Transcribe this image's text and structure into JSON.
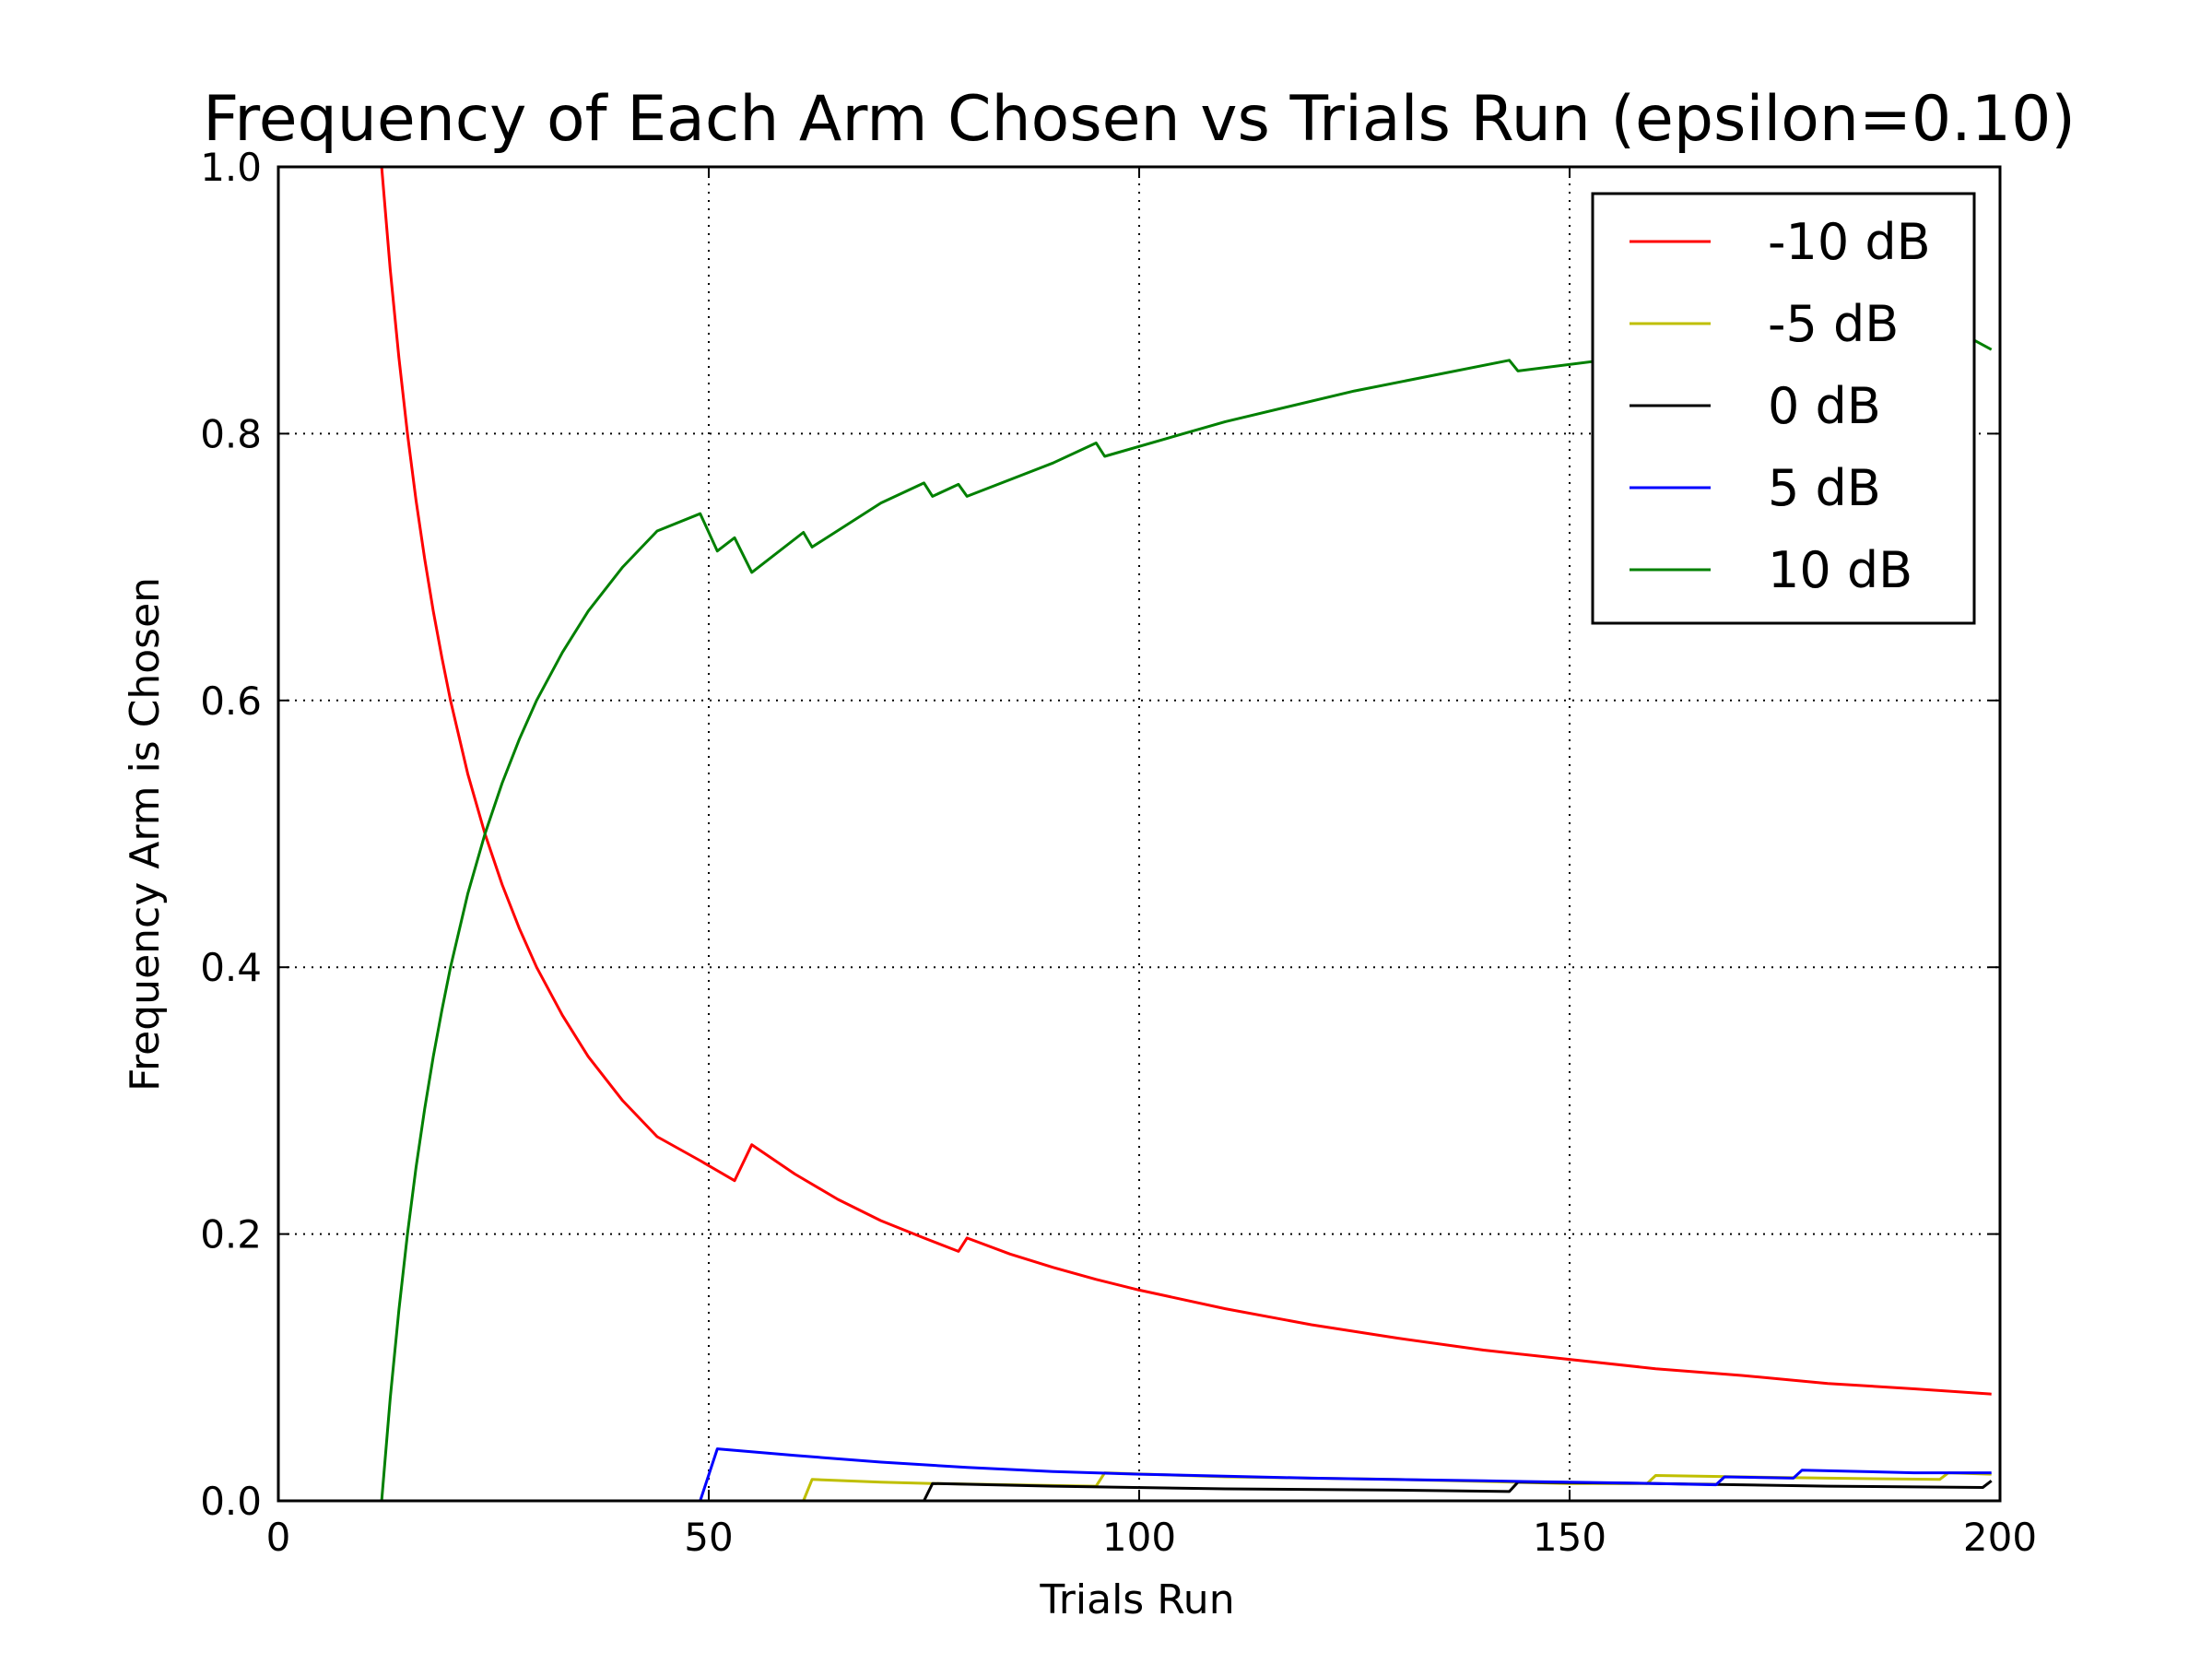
{
  "chart_data": {
    "type": "line",
    "title": "Frequency of Each Arm Chosen vs Trials Run (epsilon=0.10)",
    "xlabel": "Trials Run",
    "ylabel": "Frequency Arm is Chosen",
    "xlim": [
      0,
      200
    ],
    "ylim": [
      0.0,
      1.0
    ],
    "xticks": [
      0,
      50,
      100,
      150,
      200
    ],
    "xtick_labels": [
      "0",
      "50",
      "100",
      "150",
      "200"
    ],
    "yticks": [
      0.0,
      0.2,
      0.4,
      0.6,
      0.8,
      1.0
    ],
    "ytick_labels": [
      "0.0",
      "0.2",
      "0.4",
      "0.6",
      "0.8",
      "1.0"
    ],
    "grid": true,
    "legend_position": "top-right",
    "series": [
      {
        "name": "-10 dB",
        "color": "#ff0000",
        "points": [
          [
            12,
            1.0
          ],
          [
            13,
            0.923
          ],
          [
            14,
            0.857
          ],
          [
            15,
            0.8
          ],
          [
            16,
            0.75
          ],
          [
            17,
            0.706
          ],
          [
            18,
            0.667
          ],
          [
            19,
            0.632
          ],
          [
            20,
            0.6
          ],
          [
            22,
            0.545
          ],
          [
            24,
            0.5
          ],
          [
            26,
            0.462
          ],
          [
            28,
            0.429
          ],
          [
            30,
            0.4
          ],
          [
            33,
            0.364
          ],
          [
            36,
            0.333
          ],
          [
            40,
            0.3
          ],
          [
            44,
            0.273
          ],
          [
            49,
            0.255
          ],
          [
            53,
            0.24
          ],
          [
            55,
            0.267
          ],
          [
            60,
            0.245
          ],
          [
            65,
            0.226
          ],
          [
            70,
            0.21
          ],
          [
            75,
            0.197
          ],
          [
            79,
            0.187
          ],
          [
            80,
            0.197
          ],
          [
            85,
            0.185
          ],
          [
            90,
            0.175
          ],
          [
            95,
            0.166
          ],
          [
            100,
            0.158
          ],
          [
            110,
            0.144
          ],
          [
            120,
            0.132
          ],
          [
            130,
            0.122
          ],
          [
            140,
            0.113
          ],
          [
            150,
            0.106
          ],
          [
            160,
            0.099
          ],
          [
            170,
            0.094
          ],
          [
            180,
            0.088
          ],
          [
            190,
            0.084
          ],
          [
            199,
            0.08
          ]
        ]
      },
      {
        "name": "-5 dB",
        "color": "#bfbf00",
        "points": [
          [
            0,
            0.0
          ],
          [
            61,
            0.0
          ],
          [
            62,
            0.016
          ],
          [
            70,
            0.014
          ],
          [
            76,
            0.013
          ],
          [
            95,
            0.011
          ],
          [
            96,
            0.021
          ],
          [
            110,
            0.018
          ],
          [
            130,
            0.016
          ],
          [
            150,
            0.013
          ],
          [
            159,
            0.013
          ],
          [
            160,
            0.019
          ],
          [
            170,
            0.018
          ],
          [
            180,
            0.017
          ],
          [
            193,
            0.016
          ],
          [
            194,
            0.021
          ],
          [
            199,
            0.02
          ]
        ]
      },
      {
        "name": "0 dB",
        "color": "#000000",
        "points": [
          [
            0,
            0.0
          ],
          [
            75,
            0.0
          ],
          [
            76,
            0.013
          ],
          [
            90,
            0.011
          ],
          [
            110,
            0.009
          ],
          [
            130,
            0.008
          ],
          [
            143,
            0.007
          ],
          [
            144,
            0.014
          ],
          [
            160,
            0.013
          ],
          [
            180,
            0.011
          ],
          [
            198,
            0.01
          ],
          [
            199,
            0.015
          ]
        ]
      },
      {
        "name": "5 dB",
        "color": "#0000ff",
        "points": [
          [
            0,
            0.0
          ],
          [
            49,
            0.0
          ],
          [
            51,
            0.039
          ],
          [
            60,
            0.034
          ],
          [
            70,
            0.029
          ],
          [
            80,
            0.025
          ],
          [
            90,
            0.022
          ],
          [
            100,
            0.02
          ],
          [
            120,
            0.017
          ],
          [
            140,
            0.015
          ],
          [
            160,
            0.013
          ],
          [
            167,
            0.012
          ],
          [
            168,
            0.018
          ],
          [
            176,
            0.017
          ],
          [
            177,
            0.023
          ],
          [
            190,
            0.021
          ],
          [
            199,
            0.021
          ]
        ]
      },
      {
        "name": "10 dB",
        "color": "#008000",
        "points": [
          [
            12,
            0.0
          ],
          [
            13,
            0.077
          ],
          [
            14,
            0.143
          ],
          [
            15,
            0.2
          ],
          [
            16,
            0.25
          ],
          [
            17,
            0.294
          ],
          [
            18,
            0.333
          ],
          [
            19,
            0.368
          ],
          [
            20,
            0.4
          ],
          [
            22,
            0.455
          ],
          [
            24,
            0.5
          ],
          [
            26,
            0.538
          ],
          [
            28,
            0.571
          ],
          [
            30,
            0.6
          ],
          [
            33,
            0.636
          ],
          [
            36,
            0.667
          ],
          [
            40,
            0.7
          ],
          [
            44,
            0.727
          ],
          [
            49,
            0.74
          ],
          [
            51,
            0.712
          ],
          [
            53,
            0.722
          ],
          [
            55,
            0.696
          ],
          [
            61,
            0.726
          ],
          [
            62,
            0.715
          ],
          [
            70,
            0.748
          ],
          [
            75,
            0.763
          ],
          [
            76,
            0.753
          ],
          [
            79,
            0.762
          ],
          [
            80,
            0.753
          ],
          [
            90,
            0.778
          ],
          [
            95,
            0.793
          ],
          [
            96,
            0.783
          ],
          [
            110,
            0.809
          ],
          [
            125,
            0.832
          ],
          [
            143,
            0.855
          ],
          [
            144,
            0.847
          ],
          [
            160,
            0.86
          ],
          [
            180,
            0.866
          ],
          [
            197,
            0.87
          ],
          [
            199,
            0.863
          ]
        ]
      }
    ]
  }
}
